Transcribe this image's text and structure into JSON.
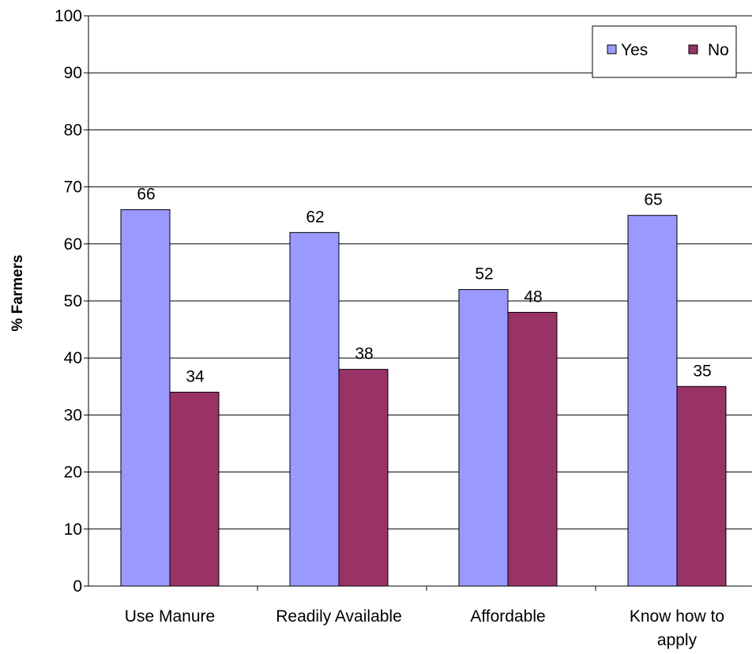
{
  "chart_data": {
    "type": "bar",
    "categories": [
      "Use Manure",
      "Readily Available",
      "Affordable",
      "Know how to apply"
    ],
    "category_lines": [
      [
        "Use Manure"
      ],
      [
        "Readily Available"
      ],
      [
        "Affordable"
      ],
      [
        "Know how to",
        "apply"
      ]
    ],
    "series": [
      {
        "name": "Yes",
        "values": [
          66,
          62,
          52,
          65
        ],
        "color": "#9999ff"
      },
      {
        "name": "No",
        "values": [
          34,
          38,
          48,
          35
        ],
        "color": "#993366"
      }
    ],
    "data_labels": {
      "Yes": [
        "66",
        "62",
        "52",
        "65"
      ],
      "No": [
        "34",
        "38",
        "48",
        "35"
      ]
    },
    "title": "",
    "xlabel": "",
    "ylabel": "% Farmers",
    "ylim": [
      0,
      100
    ],
    "yticks": [
      "0",
      "10",
      "20",
      "30",
      "40",
      "50",
      "60",
      "70",
      "80",
      "90",
      "100"
    ],
    "grid": true,
    "legend_placement": "top-right"
  }
}
